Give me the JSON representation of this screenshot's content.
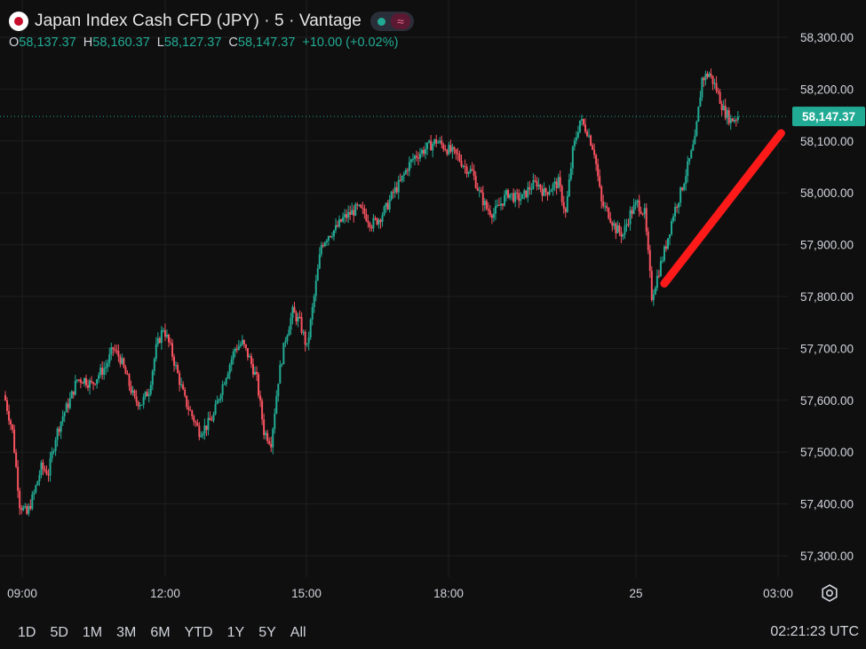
{
  "header": {
    "title": "Japan Index Cash CFD (JPY) · 5 · Vantage",
    "status_icon": "market-open-dot",
    "wave_glyph": "≈",
    "ohlc": {
      "o_label": "O",
      "o_value": "58,137.37",
      "h_label": "H",
      "h_value": "58,160.37",
      "l_label": "L",
      "l_value": "58,127.37",
      "c_label": "C",
      "c_value": "58,147.37",
      "change": "+10.00 (+0.02%)"
    }
  },
  "colors": {
    "background": "#0f0f0f",
    "up": "#22ab94",
    "down": "#f7525f",
    "grid": "#1f1f1f",
    "annotation": "#ff1a1a",
    "price_tag": "#22ab94"
  },
  "chart_data": {
    "type": "candlestick",
    "interval": "5",
    "y_ticks": [
      "58,300.00",
      "58,200.00",
      "58,100.00",
      "58,000.00",
      "57,900.00",
      "57,800.00",
      "57,700.00",
      "57,600.00",
      "57,500.00",
      "57,400.00",
      "57,300.00"
    ],
    "ylim": [
      57280,
      58350
    ],
    "x_ticks": [
      "09:00",
      "12:00",
      "15:00",
      "18:00",
      "25",
      "03:00"
    ],
    "last_price": "58,147.37",
    "last_value": 58147.37,
    "close_path": [
      [
        0,
        57600
      ],
      [
        4,
        57540
      ],
      [
        8,
        57400
      ],
      [
        12,
        57380
      ],
      [
        16,
        57420
      ],
      [
        20,
        57470
      ],
      [
        24,
        57460
      ],
      [
        28,
        57530
      ],
      [
        32,
        57570
      ],
      [
        36,
        57600
      ],
      [
        40,
        57640
      ],
      [
        44,
        57640
      ],
      [
        48,
        57630
      ],
      [
        52,
        57650
      ],
      [
        56,
        57665
      ],
      [
        60,
        57700
      ],
      [
        64,
        57680
      ],
      [
        68,
        57640
      ],
      [
        72,
        57600
      ],
      [
        76,
        57595
      ],
      [
        80,
        57620
      ],
      [
        84,
        57700
      ],
      [
        88,
        57740
      ],
      [
        92,
        57700
      ],
      [
        96,
        57650
      ],
      [
        100,
        57600
      ],
      [
        104,
        57570
      ],
      [
        108,
        57540
      ],
      [
        112,
        57550
      ],
      [
        116,
        57570
      ],
      [
        120,
        57620
      ],
      [
        124,
        57660
      ],
      [
        128,
        57700
      ],
      [
        132,
        57710
      ],
      [
        136,
        57680
      ],
      [
        140,
        57640
      ],
      [
        144,
        57540
      ],
      [
        148,
        57520
      ],
      [
        152,
        57640
      ],
      [
        156,
        57720
      ],
      [
        160,
        57770
      ],
      [
        164,
        57750
      ],
      [
        168,
        57700
      ],
      [
        172,
        57800
      ],
      [
        176,
        57900
      ],
      [
        180,
        57920
      ],
      [
        184,
        57930
      ],
      [
        188,
        57950
      ],
      [
        192,
        57960
      ],
      [
        196,
        57970
      ],
      [
        200,
        57960
      ],
      [
        204,
        57940
      ],
      [
        208,
        57950
      ],
      [
        212,
        57970
      ],
      [
        216,
        58000
      ],
      [
        220,
        58020
      ],
      [
        224,
        58050
      ],
      [
        228,
        58070
      ],
      [
        232,
        58080
      ],
      [
        236,
        58090
      ],
      [
        240,
        58100
      ],
      [
        244,
        58090
      ],
      [
        248,
        58080
      ],
      [
        252,
        58070
      ],
      [
        256,
        58050
      ],
      [
        260,
        58040
      ],
      [
        264,
        58000
      ],
      [
        268,
        57970
      ],
      [
        272,
        57960
      ],
      [
        276,
        57980
      ],
      [
        280,
        58000
      ],
      [
        284,
        57990
      ],
      [
        288,
        57990
      ],
      [
        292,
        58010
      ],
      [
        296,
        58020
      ],
      [
        300,
        58000
      ],
      [
        304,
        58010
      ],
      [
        308,
        58020
      ],
      [
        312,
        57960
      ],
      [
        316,
        58080
      ],
      [
        320,
        58140
      ],
      [
        324,
        58120
      ],
      [
        328,
        58080
      ],
      [
        332,
        57980
      ],
      [
        336,
        57960
      ],
      [
        340,
        57930
      ],
      [
        344,
        57920
      ],
      [
        348,
        57960
      ],
      [
        352,
        57980
      ],
      [
        356,
        57960
      ],
      [
        360,
        57800
      ],
      [
        364,
        57850
      ],
      [
        368,
        57900
      ],
      [
        372,
        57960
      ],
      [
        376,
        58000
      ],
      [
        380,
        58050
      ],
      [
        384,
        58100
      ],
      [
        388,
        58220
      ],
      [
        392,
        58230
      ],
      [
        396,
        58200
      ],
      [
        400,
        58160
      ],
      [
        404,
        58140
      ],
      [
        408,
        58147
      ]
    ],
    "annotation_arrow": {
      "from": [
        367,
        57825
      ],
      "to": [
        432,
        58115
      ]
    }
  },
  "footer": {
    "ranges": [
      "1D",
      "5D",
      "1M",
      "3M",
      "6M",
      "YTD",
      "1Y",
      "5Y",
      "All"
    ],
    "clock": "02:21:23 UTC"
  }
}
